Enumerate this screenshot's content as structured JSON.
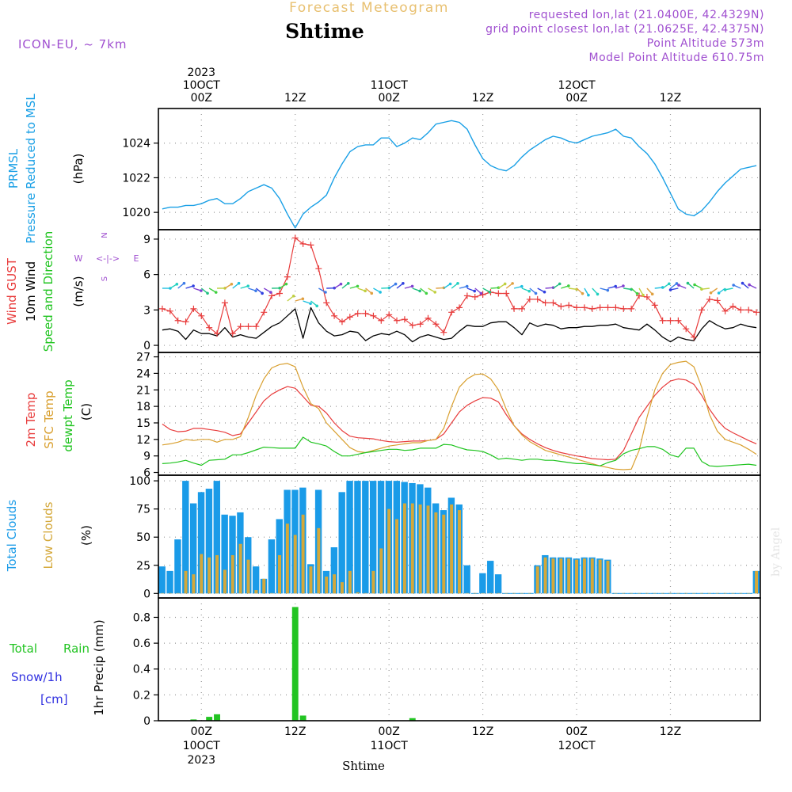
{
  "header": {
    "top_title": "Forecast Meteogram",
    "location": "Shtime",
    "model": "ICON-EU, ~ 7km",
    "requested": "requested lon,lat (21.0400E, 42.4329N)",
    "grid_point": "grid point closest lon,lat (21.0625E, 42.4375N)",
    "point_altitude": "Point Altitude 573m",
    "model_altitude": "Model Point Altitude 610.75m",
    "credit": "by Angel",
    "footer": "Shtime"
  },
  "colors": {
    "prmsl": "#1aa0e6",
    "gust": "#e83c3c",
    "wind": "#000000",
    "dir_green": "#1fc41f",
    "t2m": "#e83c3c",
    "sfc": "#d9a030",
    "dew": "#1fc41f",
    "total_clouds": "#1a9be8",
    "low_clouds": "#d4a83a",
    "rain": "#22c422",
    "snow": "#3030e0",
    "compass": "#a050d0",
    "header_purple": "#a050d0",
    "header_orange": "#e8c070"
  },
  "time_axis": {
    "labels": [
      {
        "hour": 0,
        "top": [
          "2023",
          "10OCT",
          "00Z"
        ],
        "bottom": [
          "00Z",
          "10OCT",
          "2023"
        ]
      },
      {
        "hour": 12,
        "top": [
          "12Z"
        ],
        "bottom": [
          "12Z"
        ]
      },
      {
        "hour": 24,
        "top": [
          "11OCT",
          "00Z"
        ],
        "bottom": [
          "00Z",
          "11OCT"
        ]
      },
      {
        "hour": 36,
        "top": [
          "12Z"
        ],
        "bottom": [
          "12Z"
        ]
      },
      {
        "hour": 48,
        "top": [
          "12OCT",
          "00Z"
        ],
        "bottom": [
          "00Z",
          "12OCT"
        ]
      },
      {
        "hour": 60,
        "top": [
          "12Z"
        ],
        "bottom": [
          "12Z"
        ]
      }
    ]
  },
  "compass": {
    "n": "N",
    "s": "S",
    "w": "W",
    "e": "E",
    "arrows": "<-|->"
  },
  "chart_data": [
    {
      "id": "pressure",
      "type": "line",
      "ylabel": [
        "PRMSL",
        "Pressure Reduced to MSL"
      ],
      "unit": "(hPa)",
      "yticks": [
        1020,
        1022,
        1024
      ],
      "ylim": [
        1019,
        1026
      ],
      "x": [
        -5,
        -4,
        -3,
        -2,
        -1,
        0,
        1,
        2,
        3,
        4,
        5,
        6,
        7,
        8,
        9,
        10,
        11,
        12,
        13,
        14,
        15,
        16,
        17,
        18,
        19,
        20,
        21,
        22,
        23,
        24,
        25,
        26,
        27,
        28,
        29,
        30,
        31,
        32,
        33,
        34,
        35,
        36,
        37,
        38,
        39,
        40,
        41,
        42,
        43,
        44,
        45,
        46,
        47,
        48,
        49,
        50,
        51,
        52,
        53,
        54,
        55,
        56,
        57,
        58,
        59,
        60,
        61,
        62,
        63,
        64,
        65,
        66,
        67,
        68,
        69,
        70,
        71
      ],
      "series": [
        {
          "values": [
            1020.2,
            1020.3,
            1020.3,
            1020.4,
            1020.4,
            1020.5,
            1020.7,
            1020.8,
            1020.5,
            1020.5,
            1020.8,
            1021.2,
            1021.4,
            1021.6,
            1021.4,
            1020.8,
            1019.9,
            1019.1,
            1019.9,
            1020.3,
            1020.6,
            1021.0,
            1022.0,
            1022.8,
            1023.5,
            1023.8,
            1023.9,
            1023.9,
            1024.3,
            1024.3,
            1023.8,
            1024.0,
            1024.3,
            1024.2,
            1024.6,
            1025.1,
            1025.2,
            1025.3,
            1025.2,
            1024.8,
            1023.9,
            1023.1,
            1022.7,
            1022.5,
            1022.4,
            1022.7,
            1023.2,
            1023.6,
            1023.9,
            1024.2,
            1024.4,
            1024.3,
            1024.1,
            1024.0,
            1024.2,
            1024.4,
            1024.5,
            1024.6,
            1024.8,
            1024.4,
            1024.3,
            1023.8,
            1023.4,
            1022.8,
            1022.0,
            1021.1,
            1020.2,
            1019.9,
            1019.8,
            1020.1,
            1020.6,
            1021.2,
            1021.7,
            1022.1,
            1022.5,
            1022.6,
            1022.7
          ]
        }
      ]
    },
    {
      "id": "wind",
      "type": "line",
      "ylabel_parts": [
        {
          "text": "Wind GUST",
          "color": "gust"
        },
        {
          "text": "10m Wind",
          "color": "wind"
        },
        {
          "text": "Speed and Direction",
          "color": "dir_green"
        }
      ],
      "unit": "(m/s)",
      "yticks": [
        0,
        3,
        6,
        9
      ],
      "ylim": [
        -0.6,
        9.8
      ],
      "gust_x": [
        -5,
        -4,
        -3,
        -2,
        -1,
        0,
        1,
        2,
        3,
        4,
        5,
        6,
        7,
        8,
        9,
        10,
        11,
        12,
        13,
        14,
        15,
        16,
        17,
        18,
        19,
        20,
        21,
        22,
        23,
        24,
        25,
        26,
        27,
        28,
        29,
        30,
        31,
        32,
        33,
        34,
        35,
        36,
        37,
        38,
        39,
        40,
        41,
        42,
        43,
        44,
        45,
        46,
        47,
        48,
        49,
        50,
        51,
        52,
        53,
        54,
        55,
        56,
        57,
        58,
        59,
        60,
        61,
        62,
        63,
        64,
        65,
        66,
        67,
        68,
        69,
        70,
        71
      ],
      "gust": [
        3.1,
        2.9,
        2.1,
        2.0,
        3.1,
        2.5,
        1.5,
        1.0,
        3.6,
        1.0,
        1.6,
        1.6,
        1.6,
        2.8,
        4.2,
        4.4,
        5.8,
        9.1,
        8.6,
        8.5,
        6.5,
        3.6,
        2.5,
        2.0,
        2.4,
        2.7,
        2.7,
        2.5,
        2.1,
        2.6,
        2.1,
        2.2,
        1.7,
        1.8,
        2.3,
        1.8,
        1.1,
        2.8,
        3.2,
        4.2,
        4.1,
        4.3,
        4.5,
        4.4,
        4.4,
        3.1,
        3.1,
        3.9,
        3.9,
        3.6,
        3.6,
        3.3,
        3.4,
        3.2,
        3.2,
        3.1,
        3.2,
        3.2,
        3.2,
        3.1,
        3.1,
        4.2,
        4.1,
        3.4,
        2.1,
        2.1,
        2.1,
        1.4,
        0.7,
        3.0,
        3.9,
        3.8,
        2.9,
        3.3,
        3.0,
        3.0,
        2.8
      ],
      "wind": [
        1.3,
        1.4,
        1.2,
        0.5,
        1.3,
        1.0,
        1.0,
        0.8,
        1.5,
        0.7,
        0.9,
        0.7,
        0.6,
        1.1,
        1.6,
        1.9,
        2.5,
        3.1,
        0.6,
        3.2,
        1.9,
        1.2,
        0.8,
        0.9,
        1.2,
        1.1,
        0.4,
        0.8,
        1.0,
        0.9,
        1.2,
        0.9,
        0.3,
        0.7,
        0.9,
        0.7,
        0.5,
        0.6,
        1.2,
        1.7,
        1.6,
        1.6,
        1.9,
        2.0,
        2.0,
        1.5,
        0.9,
        1.9,
        1.6,
        1.8,
        1.7,
        1.4,
        1.5,
        1.5,
        1.6,
        1.6,
        1.7,
        1.7,
        1.8,
        1.5,
        1.4,
        1.3,
        1.8,
        1.3,
        0.7,
        0.3,
        0.7,
        0.5,
        0.4,
        1.4,
        2.1,
        1.7,
        1.4,
        1.5,
        1.8,
        1.6,
        1.5
      ]
    },
    {
      "id": "temperature",
      "type": "line",
      "ylabel_parts": [
        {
          "text": "2m Temp",
          "color": "t2m"
        },
        {
          "text": "SFC Temp",
          "color": "sfc"
        },
        {
          "text": "dewpt Temp",
          "color": "dew"
        }
      ],
      "unit": "(C)",
      "yticks": [
        6,
        9,
        12,
        15,
        18,
        21,
        24,
        27
      ],
      "ylim": [
        5.5,
        27.8
      ],
      "x": [
        -5,
        -4,
        -3,
        -2,
        -1,
        0,
        1,
        2,
        3,
        4,
        5,
        6,
        7,
        8,
        9,
        10,
        11,
        12,
        13,
        14,
        15,
        16,
        17,
        18,
        19,
        20,
        21,
        22,
        23,
        24,
        25,
        26,
        27,
        28,
        29,
        30,
        31,
        32,
        33,
        34,
        35,
        36,
        37,
        38,
        39,
        40,
        41,
        42,
        43,
        44,
        45,
        46,
        47,
        48,
        49,
        50,
        51,
        52,
        53,
        54,
        55,
        56,
        57,
        58,
        59,
        60,
        61,
        62,
        63,
        64,
        65,
        66,
        67,
        68,
        69,
        70,
        71
      ],
      "series": [
        {
          "name": "2m Temp",
          "values": [
            14.8,
            13.8,
            13.4,
            13.5,
            14.0,
            14.0,
            13.8,
            13.6,
            13.3,
            12.7,
            13.0,
            15.0,
            17.0,
            19.0,
            20.2,
            21.0,
            21.6,
            21.3,
            19.8,
            18.2,
            18.0,
            16.8,
            15.0,
            13.6,
            12.6,
            12.3,
            12.2,
            12.1,
            11.8,
            11.6,
            11.5,
            11.6,
            11.7,
            11.7,
            11.8,
            12.0,
            13.0,
            15.0,
            17.0,
            18.2,
            19.0,
            19.6,
            19.5,
            18.8,
            16.5,
            14.5,
            13.0,
            12.0,
            11.2,
            10.5,
            10.0,
            9.6,
            9.3,
            9.0,
            8.8,
            8.5,
            8.4,
            8.3,
            8.4,
            10.0,
            13.0,
            16.0,
            18.0,
            20.0,
            21.5,
            22.6,
            23.0,
            22.8,
            22.0,
            20.0,
            17.5,
            15.5,
            14.0,
            13.2,
            12.5,
            11.8,
            11.2
          ]
        },
        {
          "name": "SFC Temp",
          "values": [
            11.0,
            11.2,
            11.5,
            12.0,
            11.8,
            12.0,
            12.0,
            11.5,
            12.0,
            12.0,
            12.5,
            16.0,
            20.0,
            23.0,
            25.0,
            25.6,
            25.8,
            25.2,
            21.5,
            18.5,
            17.6,
            15.0,
            13.5,
            12.0,
            10.5,
            9.8,
            9.6,
            10.0,
            10.4,
            10.8,
            11.0,
            11.2,
            11.4,
            11.4,
            11.8,
            12.0,
            14.0,
            18.0,
            21.5,
            23.0,
            23.8,
            23.9,
            23.0,
            21.0,
            17.5,
            14.5,
            12.8,
            11.6,
            10.8,
            10.0,
            9.6,
            9.2,
            8.8,
            8.4,
            8.0,
            7.6,
            7.2,
            6.9,
            6.6,
            6.5,
            6.6,
            10.0,
            16.0,
            21.0,
            24.0,
            25.6,
            26.0,
            26.2,
            25.2,
            21.5,
            16.5,
            13.5,
            12.0,
            11.5,
            11.0,
            10.2,
            9.3
          ]
        },
        {
          "name": "dewpt Temp",
          "values": [
            7.6,
            7.7,
            7.9,
            8.2,
            7.7,
            7.3,
            8.2,
            8.3,
            8.4,
            9.2,
            9.2,
            9.6,
            10.1,
            10.6,
            10.5,
            10.4,
            10.4,
            10.4,
            12.4,
            11.5,
            11.2,
            10.8,
            9.8,
            9.0,
            9.0,
            9.3,
            9.6,
            9.8,
            10.0,
            10.2,
            10.2,
            10.0,
            10.1,
            10.4,
            10.4,
            10.4,
            11.1,
            11.0,
            10.5,
            10.1,
            10.0,
            9.8,
            9.2,
            8.4,
            8.6,
            8.4,
            8.2,
            8.4,
            8.4,
            8.2,
            8.2,
            8.0,
            7.8,
            7.6,
            7.6,
            7.4,
            7.2,
            7.8,
            8.2,
            9.4,
            10.0,
            10.3,
            10.7,
            10.7,
            10.2,
            9.2,
            8.8,
            10.4,
            10.4,
            8.0,
            7.2,
            7.1,
            7.2,
            7.3,
            7.4,
            7.5,
            7.3
          ]
        }
      ]
    },
    {
      "id": "clouds",
      "type": "bar",
      "ylabel_parts": [
        {
          "text": "Total Clouds",
          "color": "total_clouds"
        },
        {
          "text": "Low Clouds",
          "color": "low_clouds"
        }
      ],
      "unit": "(%)",
      "yticks": [
        0,
        25,
        50,
        75,
        100
      ],
      "ylim": [
        -4,
        105
      ],
      "x": [
        -5,
        -4,
        -3,
        -2,
        -1,
        0,
        1,
        2,
        3,
        4,
        5,
        6,
        7,
        8,
        9,
        10,
        11,
        12,
        13,
        14,
        15,
        16,
        17,
        18,
        19,
        20,
        21,
        22,
        23,
        24,
        25,
        26,
        27,
        28,
        29,
        30,
        31,
        32,
        33,
        34,
        35,
        36,
        37,
        38,
        39,
        40,
        41,
        42,
        43,
        44,
        45,
        46,
        47,
        48,
        49,
        50,
        51,
        52,
        53,
        54,
        55,
        56,
        57,
        58,
        59,
        60,
        61,
        62,
        63,
        64,
        65,
        66,
        67,
        68,
        69,
        70,
        71
      ],
      "series": [
        {
          "name": "Total Clouds",
          "values": [
            24,
            20,
            48,
            100,
            80,
            90,
            93,
            100,
            70,
            69,
            72,
            50,
            24,
            13,
            48,
            66,
            92,
            92,
            94,
            26,
            92,
            20,
            41,
            90,
            100,
            100,
            100,
            100,
            100,
            100,
            100,
            99,
            98,
            97,
            94,
            80,
            74,
            85,
            79,
            25,
            0,
            18,
            29,
            17,
            0,
            0,
            0,
            0,
            25,
            34,
            32,
            32,
            32,
            31,
            32,
            32,
            31,
            30,
            0,
            0,
            0,
            0,
            0,
            0,
            0,
            0,
            0,
            0,
            0,
            0,
            0,
            0,
            0,
            0,
            0,
            0,
            20
          ]
        },
        {
          "name": "Low Clouds",
          "values": [
            0,
            0,
            0,
            20,
            17,
            35,
            32,
            34,
            21,
            34,
            44,
            30,
            3,
            13,
            0,
            34,
            62,
            52,
            70,
            24,
            58,
            15,
            17,
            10,
            20,
            1,
            0,
            20,
            40,
            75,
            66,
            80,
            80,
            79,
            78,
            72,
            70,
            79,
            74,
            0,
            0,
            0,
            0,
            0,
            0,
            0,
            0,
            0,
            24,
            32,
            31,
            31,
            31,
            30,
            31,
            31,
            30,
            29,
            0,
            0,
            0,
            0,
            0,
            0,
            0,
            0,
            0,
            0,
            0,
            0,
            0,
            0,
            0,
            0,
            0,
            0,
            20
          ]
        }
      ]
    },
    {
      "id": "precip",
      "type": "bar",
      "ylabel": "1hr Precip (mm)",
      "left_labels": {
        "total": "Total",
        "rain": "Rain",
        "snow": "Snow/1h",
        "unit": "[cm]"
      },
      "yticks": [
        "0",
        "0.2",
        "0.4",
        "0.6",
        "0.8"
      ],
      "ylim": [
        0,
        0.95
      ],
      "x": [
        -1,
        1,
        2,
        12,
        13,
        27
      ],
      "series": [
        {
          "name": "Rain",
          "values": [
            0.01,
            0.03,
            0.05,
            0.88,
            0.04,
            0.02
          ]
        }
      ]
    }
  ]
}
